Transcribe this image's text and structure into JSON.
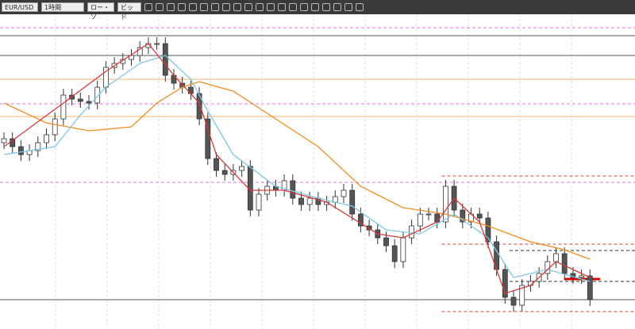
{
  "toolbar": {
    "symbol": "EUR/USD",
    "timeframe": "1時間",
    "chart_style": "ロー・ソ",
    "price_side": "ビッド"
  },
  "chart_data": {
    "type": "candlestick",
    "ylim": [
      0,
      397
    ],
    "open": [
      235,
      240,
      230,
      220,
      225,
      235,
      245,
      265,
      295,
      290,
      287,
      285,
      305,
      330,
      335,
      340,
      345,
      355,
      360,
      360,
      320,
      310,
      305,
      297,
      265,
      215,
      200,
      195,
      200,
      205,
      150,
      170,
      180,
      175,
      187,
      165,
      157,
      165,
      157,
      160,
      167,
      175,
      145,
      130,
      125,
      115,
      105,
      85,
      115,
      130,
      145,
      145,
      135,
      180,
      150,
      135,
      145,
      140,
      110,
      75,
      40,
      30,
      55,
      60,
      70,
      85,
      95,
      70,
      65,
      67
    ],
    "high": [
      248,
      248,
      238,
      233,
      243,
      253,
      273,
      303,
      303,
      298,
      295,
      313,
      338,
      343,
      348,
      353,
      363,
      368,
      368,
      368,
      328,
      318,
      313,
      305,
      273,
      223,
      208,
      208,
      213,
      213,
      178,
      188,
      188,
      195,
      195,
      173,
      173,
      173,
      168,
      175,
      183,
      183,
      153,
      138,
      133,
      123,
      113,
      123,
      138,
      153,
      153,
      153,
      188,
      188,
      158,
      153,
      153,
      148,
      118,
      83,
      48,
      63,
      68,
      78,
      93,
      103,
      103,
      78,
      75,
      75
    ],
    "low": [
      227,
      222,
      212,
      212,
      217,
      227,
      237,
      257,
      282,
      279,
      277,
      277,
      297,
      322,
      327,
      332,
      337,
      347,
      352,
      312,
      302,
      297,
      289,
      257,
      207,
      192,
      187,
      187,
      192,
      142,
      142,
      162,
      167,
      167,
      157,
      149,
      149,
      149,
      149,
      152,
      159,
      137,
      122,
      117,
      107,
      97,
      77,
      77,
      107,
      122,
      137,
      127,
      127,
      142,
      127,
      127,
      132,
      102,
      67,
      32,
      22,
      22,
      47,
      52,
      62,
      77,
      62,
      57,
      57,
      29
    ],
    "close": [
      240,
      230,
      220,
      225,
      235,
      245,
      265,
      295,
      290,
      287,
      285,
      305,
      330,
      335,
      340,
      345,
      355,
      360,
      360,
      320,
      310,
      305,
      297,
      265,
      215,
      200,
      195,
      200,
      205,
      150,
      170,
      180,
      175,
      187,
      165,
      157,
      165,
      157,
      160,
      167,
      175,
      145,
      130,
      125,
      115,
      105,
      85,
      115,
      130,
      145,
      145,
      135,
      180,
      150,
      135,
      145,
      140,
      110,
      75,
      40,
      30,
      55,
      60,
      70,
      85,
      95,
      70,
      65,
      67,
      37
    ],
    "moving_averages": [
      {
        "color": "#f28c1e",
        "x": [
          0,
          5,
          10,
          15,
          18,
          21,
          23,
          27,
          32,
          37,
          42,
          47,
          52,
          57,
          62,
          66,
          69
        ],
        "values": [
          285,
          260,
          250,
          255,
          285,
          305,
          312,
          300,
          265,
          230,
          180,
          153,
          145,
          130,
          110,
          100,
          88
        ]
      },
      {
        "color": "#7ec8e3",
        "x": [
          0,
          6,
          9,
          12,
          16,
          19,
          22,
          24,
          27,
          32,
          37,
          41,
          45,
          49,
          53,
          57,
          60,
          64,
          69
        ],
        "values": [
          220,
          230,
          270,
          305,
          335,
          345,
          315,
          275,
          220,
          180,
          165,
          155,
          125,
          120,
          145,
          115,
          65,
          75,
          60
        ]
      },
      {
        "color": "#d63a3a",
        "x": [
          0,
          7,
          12,
          17,
          20,
          23,
          25,
          29,
          33,
          38,
          44,
          47,
          51,
          53,
          56,
          59,
          62,
          65,
          69
        ],
        "values": [
          230,
          285,
          325,
          360,
          320,
          285,
          220,
          175,
          175,
          160,
          120,
          115,
          135,
          165,
          135,
          45,
          55,
          85,
          65
        ]
      }
    ],
    "levels": [
      {
        "value": 370,
        "color": "#555555",
        "style": "solid",
        "from": 0
      },
      {
        "value": 345,
        "color": "#555555",
        "style": "solid",
        "from": 0
      },
      {
        "value": 37,
        "color": "#555555",
        "style": "solid",
        "from": 0
      },
      {
        "value": 315,
        "color": "#f5b070",
        "style": "solid",
        "from": 0
      },
      {
        "value": 268,
        "color": "#f5b070",
        "style": "solid",
        "from": 0
      },
      {
        "value": 380,
        "color": "#e070e0",
        "style": "dashed",
        "from": 0
      },
      {
        "value": 284,
        "color": "#e070e0",
        "style": "dashed",
        "from": 0
      },
      {
        "value": 185,
        "color": "#e070e0",
        "style": "dashed",
        "from": 0
      },
      {
        "value": 193,
        "color": "#d04040",
        "style": "dashed",
        "from": 52
      },
      {
        "value": 107,
        "color": "#d04040",
        "style": "dashed",
        "from": 52
      },
      {
        "value": 99,
        "color": "#333333",
        "style": "dashed",
        "from": 60
      },
      {
        "value": 60,
        "color": "#333333",
        "style": "dashed",
        "from": 60
      },
      {
        "value": 22,
        "color": "#d04040",
        "style": "dashed",
        "from": 52
      },
      {
        "value": 63,
        "color": "#dd0000",
        "style": "thick",
        "from": 66
      }
    ]
  }
}
